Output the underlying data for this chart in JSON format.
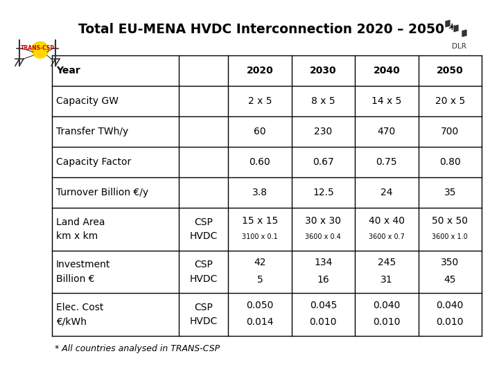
{
  "title": "Total EU-MENA HVDC Interconnection 2020 – 2050 *",
  "title_fontsize": 13.5,
  "background_color": "#ffffff",
  "footnote": "* All countries analysed in TRANS-CSP",
  "rows": [
    {
      "col1": "Year",
      "col2": "",
      "vals": [
        "2020",
        "2030",
        "2040",
        "2050"
      ],
      "is_header": true,
      "tall": false
    },
    {
      "col1": "Capacity GW",
      "col2": "",
      "vals": [
        "2 x 5",
        "8 x 5",
        "14 x 5",
        "20 x 5"
      ],
      "is_header": false,
      "tall": false
    },
    {
      "col1": "Transfer TWh/y",
      "col2": "",
      "vals": [
        "60",
        "230",
        "470",
        "700"
      ],
      "is_header": false,
      "tall": false
    },
    {
      "col1": "Capacity Factor",
      "col2": "",
      "vals": [
        "0.60",
        "0.67",
        "0.75",
        "0.80"
      ],
      "is_header": false,
      "tall": false
    },
    {
      "col1": "Turnover Billion €/y",
      "col2": "",
      "vals": [
        "3.8",
        "12.5",
        "24",
        "35"
      ],
      "is_header": false,
      "tall": false
    },
    {
      "col1": "Land Area\nkm x km",
      "col2": "CSP\nHVDC",
      "vals": [
        "15 x 15\n3100 x 0.1",
        "30 x 30\n3600 x 0.4",
        "40 x 40\n3600 x 0.7",
        "50 x 50\n3600 x 1.0"
      ],
      "is_header": false,
      "tall": true,
      "val_mixed": true
    },
    {
      "col1": "Investment\nBillion €",
      "col2": "CSP\nHVDC",
      "vals": [
        "42\n5",
        "134\n16",
        "245\n31",
        "350\n45"
      ],
      "is_header": false,
      "tall": true,
      "val_mixed": false
    },
    {
      "col1": "Elec. Cost\n€/kWh",
      "col2": "CSP\nHVDC",
      "vals": [
        "0.050\n0.014",
        "0.045\n0.010",
        "0.040\n0.010",
        "0.040\n0.010"
      ],
      "is_header": false,
      "tall": true,
      "val_mixed": false
    }
  ],
  "line_color": "#000000",
  "text_color": "#000000"
}
